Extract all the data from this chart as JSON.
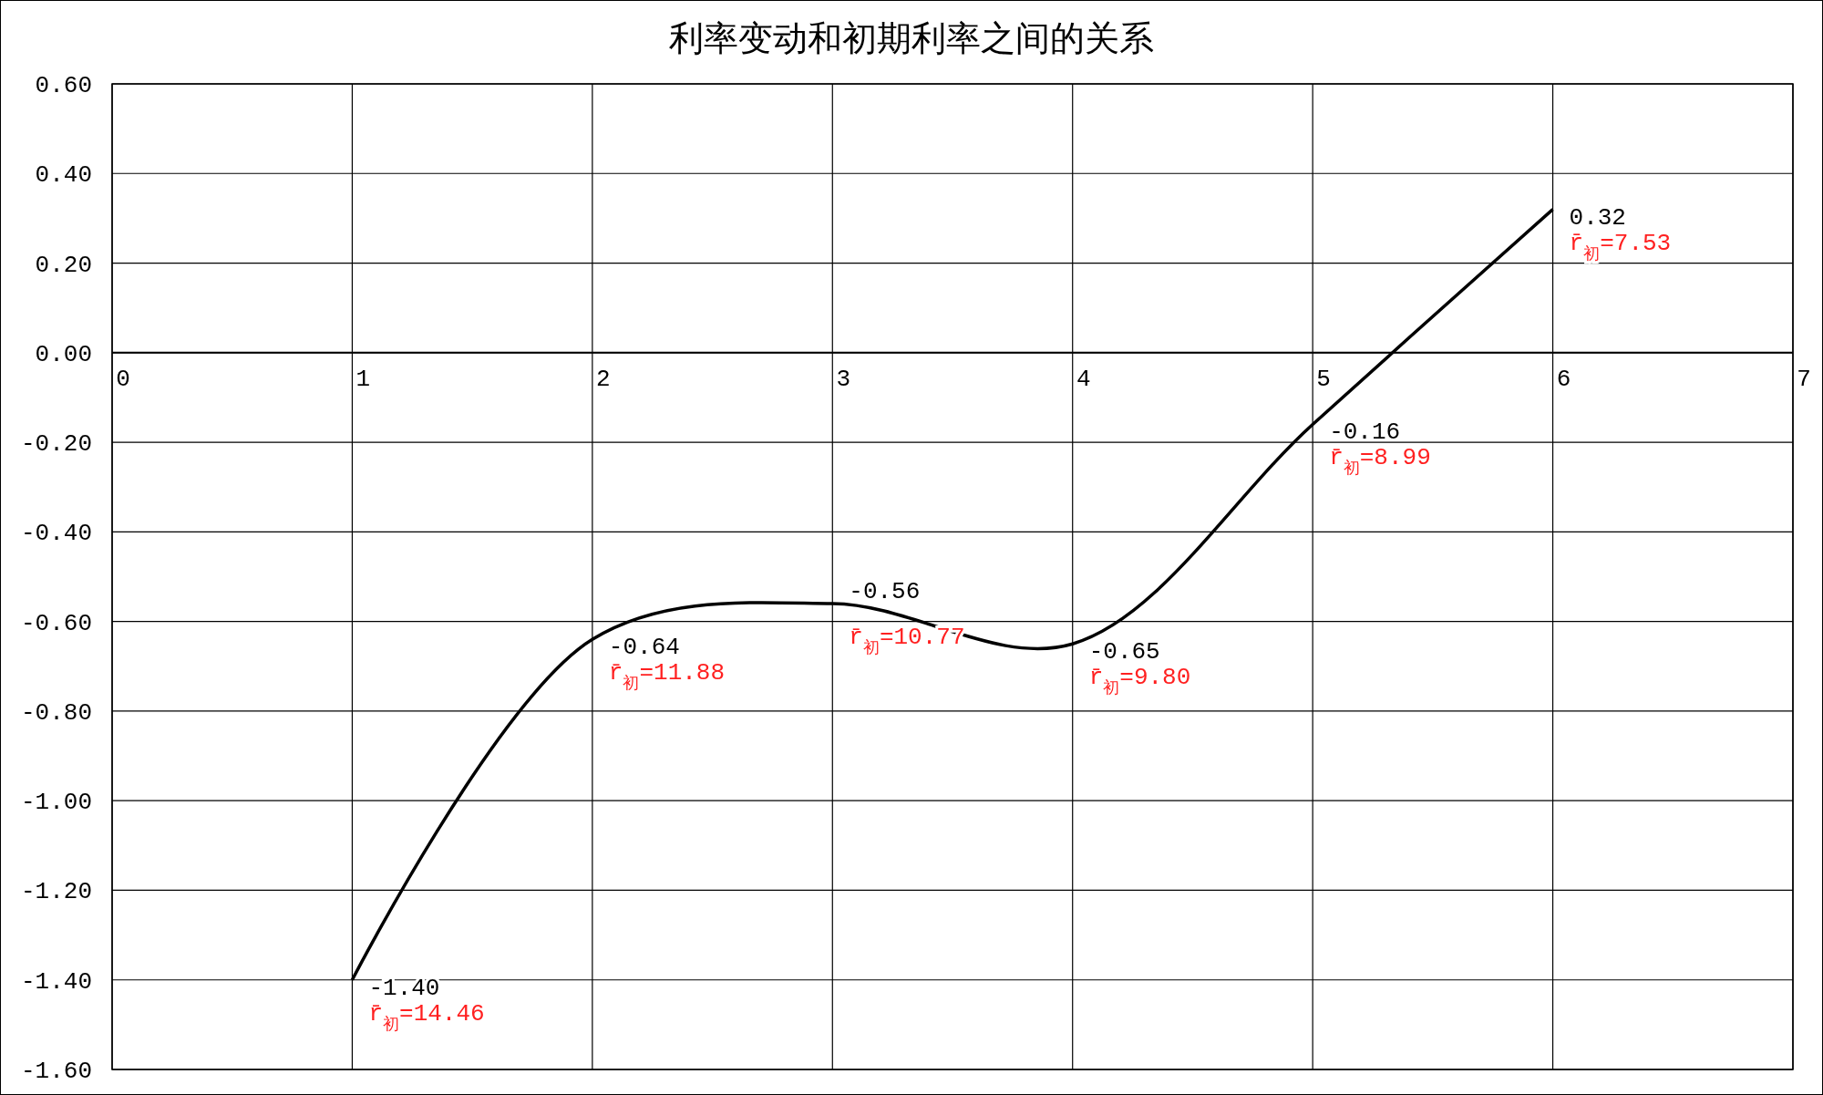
{
  "chart_data": {
    "type": "line",
    "title": "利率变动和初期利率之间的关系",
    "x": [
      1,
      2,
      3,
      4,
      5,
      6
    ],
    "series": [
      {
        "color": "#000000",
        "values": [
          -1.4,
          -0.64,
          -0.56,
          -0.65,
          -0.16,
          0.32
        ],
        "value_labels": [
          "-1.40",
          "-0.64",
          "-0.56",
          "-0.65",
          "-0.16",
          "0.32"
        ]
      }
    ],
    "xlim": [
      0,
      7
    ],
    "xticks": [
      0,
      1,
      2,
      3,
      4,
      5,
      6,
      7
    ],
    "ylim": [
      -1.6,
      0.6
    ],
    "yticks": [
      {
        "value": 0.6,
        "label": "0.60"
      },
      {
        "value": 0.4,
        "label": "0.40"
      },
      {
        "value": 0.2,
        "label": "0.20"
      },
      {
        "value": 0,
        "label": "0.00"
      },
      {
        "value": -0.2,
        "label": "-0.20"
      },
      {
        "value": -0.4,
        "label": "-0.40"
      },
      {
        "value": -0.6,
        "label": "-0.60"
      },
      {
        "value": -0.8,
        "label": "-0.80"
      },
      {
        "value": -1,
        "label": "-1.00"
      },
      {
        "value": -1.2,
        "label": "-1.20"
      },
      {
        "value": -1.4,
        "label": "-1.40"
      },
      {
        "value": -1.6,
        "label": "-1.60"
      }
    ],
    "grid": true,
    "marker": "none",
    "line_style": "solid",
    "annotations": [
      {
        "text": "r̄$_{初}$=14.46",
        "x": 1,
        "y": -1.4
      },
      {
        "text": "r̄$_{初}$=11.88",
        "x": 2,
        "y": -0.64
      },
      {
        "text": "r̄$_{初}$=10.77",
        "x": 3,
        "y": -0.56
      },
      {
        "text": "r̄$_{初}$=9.80",
        "x": 4,
        "y": -0.65
      },
      {
        "text": "r̄$_{初}$=8.99",
        "x": 5,
        "y": -0.16
      },
      {
        "text": "r̄$_{初}$=7.53",
        "x": 6,
        "y": 0.32
      }
    ]
  }
}
